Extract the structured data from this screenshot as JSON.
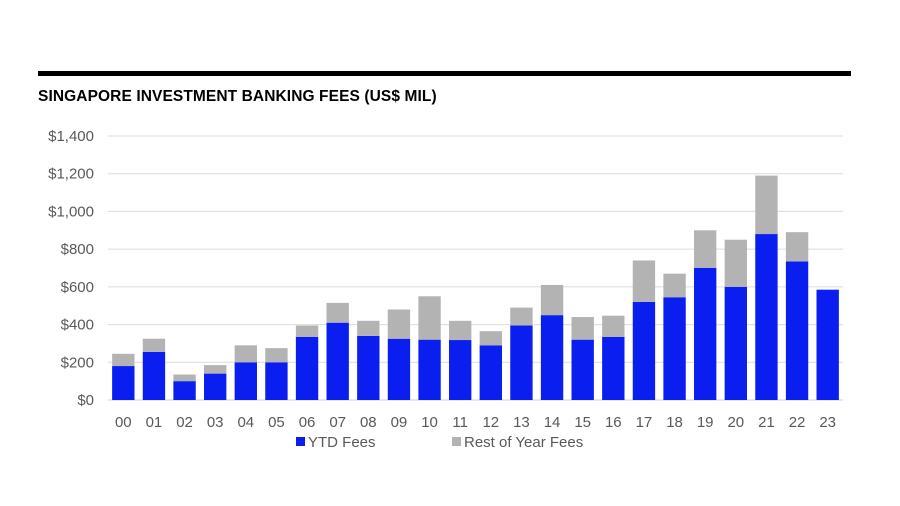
{
  "chart_data": {
    "type": "bar",
    "stacked": true,
    "title": "SINGAPORE INVESTMENT BANKING FEES (US$ MIL)",
    "xlabel": "",
    "ylabel": "",
    "categories": [
      "00",
      "01",
      "02",
      "03",
      "04",
      "05",
      "06",
      "07",
      "08",
      "09",
      "10",
      "11",
      "12",
      "13",
      "14",
      "15",
      "16",
      "17",
      "18",
      "19",
      "20",
      "21",
      "22",
      "23"
    ],
    "series": [
      {
        "name": "YTD Fees",
        "color": "#0a1ef0",
        "values": [
          180,
          255,
          100,
          140,
          200,
          200,
          335,
          410,
          340,
          325,
          320,
          318,
          290,
          395,
          450,
          320,
          335,
          520,
          545,
          700,
          600,
          880,
          735,
          585
        ]
      },
      {
        "name": "Rest of Year Fees",
        "color": "#b3b3b3",
        "values": [
          65,
          70,
          35,
          45,
          90,
          75,
          60,
          105,
          80,
          155,
          230,
          102,
          75,
          95,
          160,
          120,
          112,
          220,
          125,
          200,
          250,
          310,
          155,
          0
        ]
      }
    ],
    "ylim": [
      0,
      1400
    ],
    "yticks": [
      "$0",
      "$200",
      "$400",
      "$600",
      "$800",
      "$1,000",
      "$1,200",
      "$1,400"
    ],
    "grid": true,
    "legend": "bottom"
  }
}
